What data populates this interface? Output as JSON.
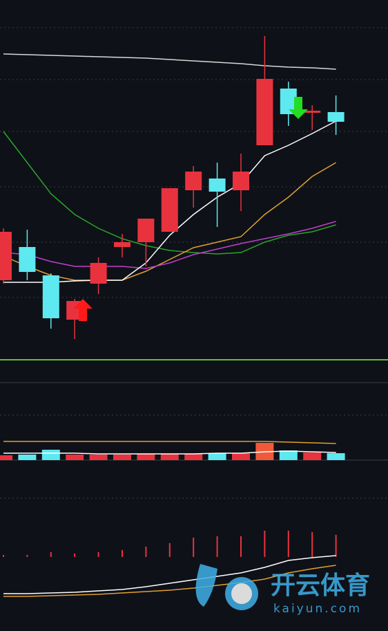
{
  "chart_data": [
    {
      "type": "candlestick",
      "ylim": [
        0,
        520
      ],
      "open": [
        115,
        163,
        122,
        58,
        110,
        163,
        170,
        185,
        245,
        262,
        245,
        310,
        392,
        357,
        358
      ],
      "high": [
        190,
        188,
        125,
        88,
        148,
        182,
        204,
        248,
        280,
        285,
        298,
        468,
        402,
        368,
        382
      ],
      "low": [
        110,
        115,
        45,
        30,
        95,
        148,
        135,
        185,
        220,
        192,
        215,
        310,
        338,
        332,
        325
      ],
      "close": [
        185,
        127,
        60,
        85,
        140,
        170,
        204,
        248,
        272,
        243,
        272,
        406,
        355,
        360,
        344
      ],
      "up_color": "#e8333f",
      "down_color": "#5ee8f0",
      "series": [
        {
          "color": "#d8d8d8",
          "values": [
            442,
            441,
            440,
            439,
            438,
            437,
            436,
            434,
            432,
            430,
            428,
            425,
            423,
            422,
            420
          ]
        },
        {
          "color": "#2aa52a",
          "values": [
            330,
            285,
            240,
            210,
            190,
            175,
            165,
            158,
            155,
            153,
            155,
            170,
            180,
            185,
            195
          ]
        },
        {
          "color": "#e0a030",
          "values": [
            150,
            135,
            122,
            115,
            115,
            115,
            128,
            145,
            162,
            170,
            178,
            210,
            235,
            265,
            285
          ]
        },
        {
          "color": "#c040d0",
          "values": [
            155,
            152,
            142,
            135,
            135,
            135,
            132,
            140,
            152,
            160,
            168,
            175,
            182,
            190,
            200
          ]
        },
        {
          "color": "#ffffff",
          "values": [
            112,
            112,
            112,
            114,
            115,
            115,
            140,
            180,
            210,
            235,
            255,
            295,
            310,
            327,
            345
          ]
        }
      ]
    },
    {
      "type": "bar",
      "ylim": [
        0,
        45
      ],
      "values": [
        7,
        8,
        15,
        8,
        8,
        8,
        9,
        9,
        9,
        10,
        10,
        25,
        14,
        11,
        10
      ],
      "colors": [
        "#e8333f",
        "#5ee8f0",
        "#5ee8f0",
        "#e8333f",
        "#e8333f",
        "#e8333f",
        "#e8333f",
        "#e8333f",
        "#e8333f",
        "#5ee8f0",
        "#e8333f",
        "#f05a3a",
        "#5ee8f0",
        "#e8333f",
        "#5ee8f0"
      ],
      "series": [
        {
          "color": "#e0a030",
          "values": [
            27,
            27,
            27,
            27,
            27,
            27,
            27,
            27,
            27,
            27,
            27,
            27,
            26,
            25,
            24
          ]
        },
        {
          "color": "#ffffff",
          "values": [
            10,
            10,
            10,
            10,
            9,
            9,
            9,
            9,
            9,
            10,
            10,
            12,
            13,
            12,
            11
          ]
        }
      ]
    },
    {
      "type": "bar",
      "ylim": [
        -65,
        65
      ],
      "color": "#e8333f",
      "values": [
        3,
        3,
        7,
        5,
        7,
        10,
        15,
        20,
        28,
        30,
        30,
        38,
        38,
        36,
        32
      ],
      "series": [
        {
          "color": "#e0a030",
          "values": [
            -57,
            -57,
            -56,
            -55,
            -54,
            -52,
            -50,
            -48,
            -45,
            -41,
            -37,
            -32,
            -23,
            -17,
            -12
          ]
        },
        {
          "color": "#ffffff",
          "values": [
            -53,
            -53,
            -52,
            -51,
            -49,
            -47,
            -43,
            -38,
            -33,
            -28,
            -23,
            -15,
            -5,
            -1,
            2
          ]
        }
      ]
    }
  ],
  "watermark": {
    "brand": "开云体育",
    "site": "kaiyun.com"
  }
}
